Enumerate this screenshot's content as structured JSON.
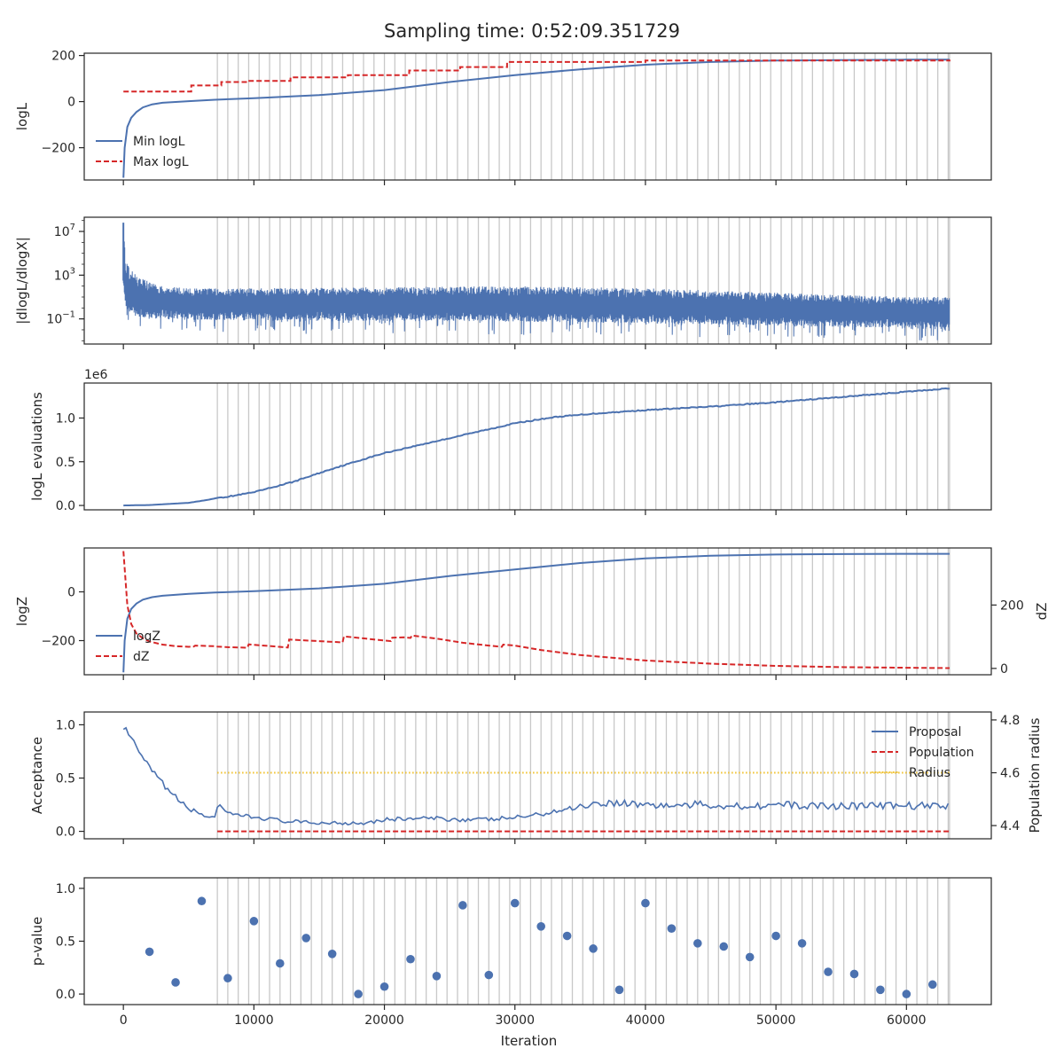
{
  "suptitle": "Sampling time: 0:52:09.351729",
  "colors": {
    "blue": "#4c72b0",
    "red": "#d62728",
    "gold": "#f0c02a",
    "gridline": "#c8c8c8",
    "axis": "#262626"
  },
  "chart_data": [
    {
      "type": "line",
      "panel": "logL",
      "ylabel": "logL",
      "xlim": [
        -3000,
        66500
      ],
      "ylim": [
        -340,
        210
      ],
      "yticks": [
        200,
        0,
        -200
      ],
      "ytick_labels": [
        "200",
        "0",
        "−200"
      ],
      "legend_loc": "lower-left",
      "series": [
        {
          "name": "Min logL",
          "style": "solid",
          "color": "#4c72b0",
          "x": [
            0,
            100,
            300,
            600,
            1000,
            1500,
            2200,
            3000,
            5000,
            7000,
            10000,
            15000,
            20000,
            25000,
            30000,
            35000,
            40000,
            45000,
            50000,
            55000,
            60000,
            63300
          ],
          "y": [
            -330,
            -200,
            -110,
            -70,
            -45,
            -25,
            -12,
            -5,
            2,
            8,
            15,
            28,
            50,
            85,
            115,
            140,
            160,
            172,
            178,
            180,
            182,
            182
          ]
        },
        {
          "name": "Max logL",
          "style": "dashed",
          "color": "#d62728",
          "step": true,
          "x": [
            0,
            5000,
            5200,
            7300,
            7500,
            9300,
            9500,
            12600,
            12800,
            17000,
            17200,
            21700,
            21900,
            25600,
            25800,
            29200,
            29400,
            40000,
            63300
          ],
          "y": [
            44,
            44,
            70,
            70,
            85,
            85,
            90,
            90,
            105,
            105,
            115,
            115,
            135,
            135,
            150,
            150,
            172,
            178,
            182
          ]
        }
      ]
    },
    {
      "type": "line",
      "panel": "dlogL",
      "ylabel": "|dlogL/dlogX|",
      "yscale": "log",
      "ylim_log10": [
        -3.3,
        8.3
      ],
      "yticks": [
        "10^7",
        "10^3",
        "10^-1"
      ],
      "envelope": {
        "x": [
          0,
          100,
          200,
          500,
          1000,
          2000,
          3000,
          5000,
          10000,
          20000,
          30000,
          40000,
          45000,
          50000,
          55000,
          60000,
          63300
        ],
        "upper_log10": [
          7.8,
          6,
          4.3,
          3.6,
          3.1,
          2.4,
          2,
          1.8,
          1.8,
          1.9,
          2,
          1.8,
          1.6,
          1.4,
          1.2,
          1,
          1
        ],
        "base_log10": [
          2.5,
          1.5,
          1,
          0.7,
          0.4,
          0.2,
          0.2,
          0.1,
          0.1,
          0,
          0,
          -0.2,
          -0.3,
          -0.5,
          -0.6,
          -0.7,
          -0.8
        ],
        "lower_log10": [
          2,
          0.5,
          -0.8,
          -1.4,
          -2,
          -2.2,
          -2.2,
          -2.3,
          -2.4,
          -2.4,
          -2.5,
          -2.6,
          -2.7,
          -2.8,
          -2.9,
          -3,
          -3.2
        ]
      }
    },
    {
      "type": "line",
      "panel": "logL_evaluations",
      "ylabel": "logL evaluations",
      "offset_label": "1e6",
      "ylim": [
        -0.05,
        1.4
      ],
      "yticks": [
        "1.0",
        "0.5",
        "0.0"
      ],
      "series": [
        {
          "name": "",
          "color": "#4c72b0",
          "x": [
            0,
            2000,
            5000,
            6500,
            7000,
            7300,
            8000,
            10000,
            13000,
            16000,
            20000,
            25000,
            30000,
            33000,
            36000,
            40000,
            45000,
            50000,
            55000,
            60000,
            63300
          ],
          "y": [
            0,
            0.005,
            0.03,
            0.065,
            0.08,
            0.09,
            0.1,
            0.15,
            0.27,
            0.42,
            0.6,
            0.77,
            0.94,
            1.01,
            1.05,
            1.09,
            1.13,
            1.18,
            1.24,
            1.3,
            1.34
          ]
        }
      ]
    },
    {
      "type": "line",
      "panel": "logZ",
      "ylabel": "logZ",
      "ylabel_right": "dZ",
      "ylim": [
        -340,
        180
      ],
      "yticks": [
        0,
        -200
      ],
      "ytick_labels": [
        "0",
        "−200"
      ],
      "ylim_right": [
        -20,
        380
      ],
      "yticks_right": [
        200,
        0
      ],
      "legend_loc": "lower-left",
      "series": [
        {
          "name": "logZ",
          "style": "solid",
          "color": "#4c72b0",
          "axis": "left",
          "x": [
            0,
            100,
            300,
            600,
            1000,
            1500,
            2200,
            3000,
            5000,
            7000,
            10000,
            15000,
            20000,
            25000,
            30000,
            35000,
            40000,
            45000,
            50000,
            55000,
            60000,
            63300
          ],
          "y": [
            -330,
            -200,
            -110,
            -70,
            -48,
            -32,
            -22,
            -16,
            -8,
            -3,
            3,
            14,
            33,
            65,
            92,
            118,
            137,
            148,
            153,
            155,
            156,
            156
          ]
        },
        {
          "name": "dZ",
          "style": "dashed",
          "color": "#d62728",
          "axis": "right",
          "x": [
            0,
            300,
            600,
            1000,
            1500,
            2000,
            3000,
            4000,
            5000,
            5400,
            5500,
            7000,
            7200,
            8000,
            9000,
            9500,
            9600,
            10500,
            12600,
            12700,
            15000,
            16800,
            16900,
            20000,
            20500,
            20600,
            21500,
            22000,
            22100,
            24000,
            26000,
            28000,
            29000,
            29100,
            30000,
            32000,
            35000,
            40000,
            45000,
            50000,
            55000,
            60000,
            63300
          ],
          "y": [
            370,
            200,
            140,
            110,
            95,
            85,
            75,
            70,
            68,
            69,
            72,
            70,
            69,
            67,
            66,
            65,
            76,
            73,
            66,
            91,
            86,
            82,
            101,
            88,
            86,
            97,
            98,
            96,
            104,
            94,
            81,
            72,
            68,
            75,
            72,
            58,
            42,
            25,
            15,
            8,
            4,
            2,
            1
          ]
        }
      ]
    },
    {
      "type": "line",
      "panel": "acceptance",
      "ylabel": "Acceptance",
      "ylabel_right": "Population radius",
      "ylim": [
        -0.07,
        1.12
      ],
      "yticks": [
        "1.0",
        "0.5",
        "0.0"
      ],
      "ylim_right": [
        4.35,
        4.83
      ],
      "yticks_right": [
        "4.8",
        "4.6",
        "4.4"
      ],
      "legend_loc": "upper-right",
      "series": [
        {
          "name": "Proposal",
          "style": "solid",
          "color": "#4c72b0",
          "x": [
            0,
            500,
            1000,
            1500,
            2000,
            2500,
            3000,
            3500,
            4000,
            4500,
            5000,
            5500,
            6000,
            6500,
            7000,
            7300,
            7600,
            8000,
            9000,
            10000,
            11000,
            12000,
            13000,
            14000,
            15000,
            16000,
            17000,
            18000,
            19000,
            20000,
            22000,
            24000,
            26000,
            28000,
            30000,
            32000,
            34000,
            36000,
            38000,
            40000,
            42000,
            44000,
            46000,
            48000,
            50000,
            52000,
            54000,
            56000,
            58000,
            60000,
            62000,
            63300
          ],
          "y": [
            0.98,
            0.9,
            0.78,
            0.68,
            0.6,
            0.52,
            0.45,
            0.38,
            0.32,
            0.26,
            0.22,
            0.18,
            0.16,
            0.14,
            0.14,
            0.26,
            0.2,
            0.16,
            0.15,
            0.13,
            0.12,
            0.1,
            0.09,
            0.08,
            0.08,
            0.08,
            0.08,
            0.08,
            0.09,
            0.11,
            0.12,
            0.12,
            0.11,
            0.11,
            0.13,
            0.16,
            0.21,
            0.26,
            0.27,
            0.25,
            0.24,
            0.25,
            0.24,
            0.24,
            0.25,
            0.24,
            0.24,
            0.24,
            0.24,
            0.24,
            0.24,
            0.24
          ]
        },
        {
          "name": "Population",
          "style": "dashed",
          "color": "#d62728",
          "x": [
            7200,
            63300
          ],
          "y": [
            0.0,
            0.0
          ]
        },
        {
          "name": "Radius",
          "style": "dotted",
          "color": "#f0c02a",
          "axis": "right",
          "x": [
            7200,
            63300
          ],
          "y": [
            4.6,
            4.6
          ]
        }
      ]
    },
    {
      "type": "scatter",
      "panel": "pvalue",
      "ylabel": "p-value",
      "xlabel": "Iteration",
      "ylim": [
        -0.1,
        1.1
      ],
      "yticks": [
        "1.0",
        "0.5",
        "0.0"
      ],
      "xticks": [
        0,
        10000,
        20000,
        30000,
        40000,
        50000,
        60000
      ],
      "xtick_labels": [
        "0",
        "10000",
        "20000",
        "30000",
        "40000",
        "50000",
        "60000"
      ],
      "series": [
        {
          "name": "",
          "color": "#4c72b0",
          "x": [
            2000,
            4000,
            6000,
            8000,
            10000,
            12000,
            14000,
            16000,
            18000,
            20000,
            22000,
            24000,
            26000,
            28000,
            30000,
            32000,
            34000,
            36000,
            38000,
            40000,
            42000,
            44000,
            46000,
            48000,
            50000,
            52000,
            54000,
            56000,
            58000,
            60000,
            62000
          ],
          "y": [
            0.4,
            0.11,
            0.88,
            0.15,
            0.69,
            0.29,
            0.53,
            0.38,
            0.0,
            0.07,
            0.33,
            0.17,
            0.84,
            0.18,
            0.86,
            0.64,
            0.55,
            0.43,
            0.04,
            0.86,
            0.62,
            0.48,
            0.45,
            0.35,
            0.55,
            0.48,
            0.21,
            0.19,
            0.04,
            0.0,
            0.09
          ]
        }
      ]
    }
  ],
  "replacement_steps": {
    "start": 7200,
    "end": 63300,
    "step": 800
  }
}
